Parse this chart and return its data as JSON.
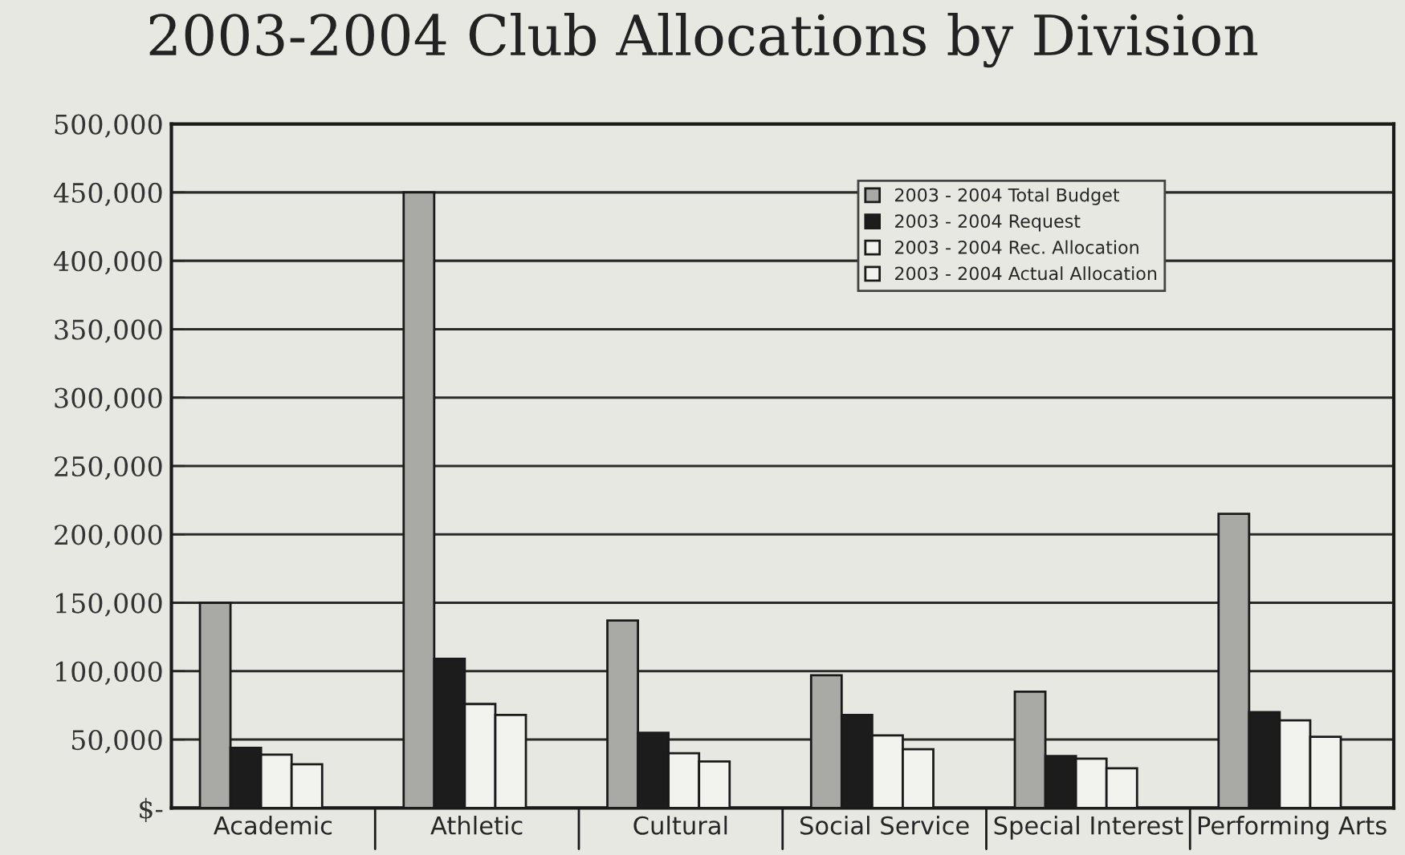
{
  "chart_data": {
    "type": "bar",
    "title": "2003-2004 Club Allocations by Division",
    "categories": [
      "Academic",
      "Athletic",
      "Cultural",
      "Social Service",
      "Special Interest",
      "Performing Arts"
    ],
    "series": [
      {
        "name": "2003 - 2004 Total Budget",
        "color": "#a9a9a6",
        "values": [
          150000,
          450000,
          137000,
          97000,
          85000,
          215000
        ]
      },
      {
        "name": "2003 - 2004 Request",
        "color": "#1c1c1c",
        "values": [
          44000,
          109000,
          55000,
          68000,
          38000,
          70000
        ]
      },
      {
        "name": "2003 - 2004 Rec. Allocation",
        "color": "#f2f2ee",
        "values": [
          39000,
          76000,
          40000,
          53000,
          36000,
          64000
        ]
      },
      {
        "name": "2003 - 2004 Actual Allocation",
        "color": "#f2f2ee",
        "values": [
          32000,
          68000,
          34000,
          43000,
          29000,
          52000
        ]
      }
    ],
    "ylim": [
      0,
      500000
    ],
    "yticks": [
      {
        "value": 0,
        "label": "$-"
      },
      {
        "value": 50000,
        "label": "50,000"
      },
      {
        "value": 100000,
        "label": "100,000"
      },
      {
        "value": 150000,
        "label": "150,000"
      },
      {
        "value": 200000,
        "label": "200,000"
      },
      {
        "value": 250000,
        "label": "250,000"
      },
      {
        "value": 300000,
        "label": "300,000"
      },
      {
        "value": 350000,
        "label": "350,000"
      },
      {
        "value": 400000,
        "label": "400,000"
      },
      {
        "value": 450000,
        "label": "450,000"
      },
      {
        "value": 500000,
        "label": "500,000"
      }
    ],
    "grid": "y",
    "legend": "top right"
  }
}
